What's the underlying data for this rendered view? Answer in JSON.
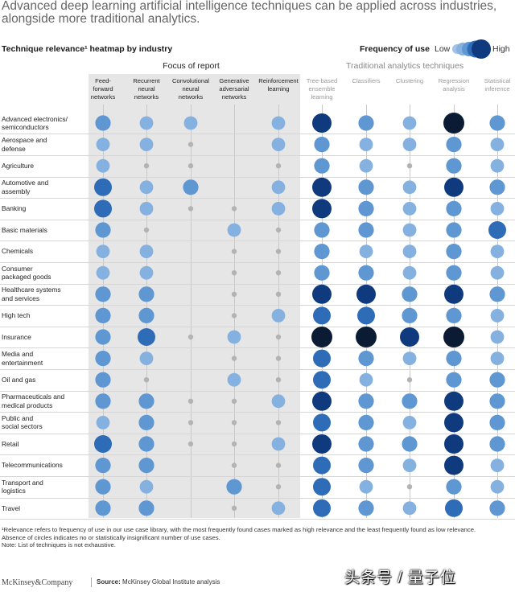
{
  "title": "Advanced deep learning artificial intelligence techniques can be applied across industries, alongside more traditional analytics.",
  "subtitle": "Technique relevance¹ heatmap by industry",
  "legend": {
    "label": "Frequency of use",
    "low": "Low",
    "high": "High"
  },
  "groups": {
    "focus": "Focus of report",
    "traditional": "Traditional analytics techniques"
  },
  "colors": {
    "panel": "#e6e6e6",
    "zero": "#b3b3b3",
    "levels": [
      "#a2c3e8",
      "#84b1e0",
      "#5f97d3",
      "#2f6cb7",
      "#0f3a7d",
      "#0b1b34"
    ]
  },
  "footnotes": [
    "¹Relevance refers to frequency of use in our use case library, with the most frequently found cases marked as high relevance and the least frequently found as low relevance. Absence of circles indicates no or statistically insignificant number of use cases.",
    "Note: List of techniques is not exhaustive."
  ],
  "brand": "McKinsey&Company",
  "source_label": "Source:",
  "source_text": "McKinsey Global Institute analysis",
  "watermark": "头条号 / 量子位",
  "chart_data": {
    "type": "heatmap",
    "title": "Technique relevance heatmap by industry",
    "value_scale": "0 = not significant (small grey dot), 1 = low frequency … 6 = high frequency",
    "columns": [
      "Feed-\nforward\nnetworks",
      "Recurrent\nneural\nnetworks",
      "Convolutional\nneural\nnetworks",
      "Generative\nadversarial\nnetworks",
      "Reinforcement\nlearning",
      "Tree-based\nensemble\nlearning",
      "Classifiers",
      "Clustering",
      "Regression\nanalysis",
      "Statistical\ninference"
    ],
    "rows": [
      "Advanced electronics/\nsemiconductors",
      "Aerospace and\ndefense",
      "Agriculture",
      "Automotive and\nassembly",
      "Banking",
      "Basic materials",
      "Chemicals",
      "Consumer\npackaged goods",
      "Healthcare systems\nand services",
      "High tech",
      "Insurance",
      "Media and\nentertainment",
      "Oil and gas",
      "Pharmaceuticals and\nmedical products",
      "Public and\nsocial sectors",
      "Retail",
      "Telecommunications",
      "Transport and\nlogistics",
      "Travel"
    ],
    "values": [
      [
        3,
        2,
        2,
        null,
        2,
        5,
        3,
        2,
        6,
        3
      ],
      [
        2,
        2,
        0,
        null,
        2,
        3,
        2,
        2,
        3,
        2
      ],
      [
        2,
        0,
        0,
        null,
        0,
        3,
        2,
        0,
        3,
        2
      ],
      [
        4,
        2,
        3,
        null,
        2,
        5,
        3,
        2,
        5,
        3
      ],
      [
        4,
        2,
        0,
        0,
        2,
        5,
        3,
        2,
        3,
        2
      ],
      [
        3,
        0,
        null,
        2,
        0,
        3,
        3,
        2,
        3,
        4
      ],
      [
        2,
        2,
        null,
        0,
        0,
        3,
        2,
        2,
        3,
        2
      ],
      [
        2,
        2,
        null,
        0,
        0,
        3,
        3,
        2,
        3,
        2
      ],
      [
        3,
        3,
        null,
        0,
        0,
        5,
        5,
        3,
        5,
        3
      ],
      [
        3,
        3,
        null,
        0,
        2,
        4,
        4,
        3,
        3,
        2
      ],
      [
        3,
        4,
        0,
        2,
        0,
        6,
        6,
        5,
        6,
        2
      ],
      [
        3,
        2,
        null,
        0,
        0,
        4,
        3,
        2,
        3,
        2
      ],
      [
        3,
        0,
        null,
        2,
        0,
        4,
        2,
        0,
        3,
        3
      ],
      [
        3,
        3,
        0,
        0,
        2,
        5,
        3,
        3,
        5,
        3
      ],
      [
        2,
        3,
        0,
        0,
        0,
        4,
        3,
        2,
        5,
        3
      ],
      [
        4,
        3,
        0,
        0,
        2,
        5,
        3,
        3,
        5,
        3
      ],
      [
        3,
        3,
        null,
        0,
        0,
        4,
        3,
        2,
        5,
        2
      ],
      [
        3,
        2,
        null,
        3,
        0,
        4,
        2,
        0,
        3,
        2
      ],
      [
        3,
        3,
        null,
        0,
        2,
        4,
        3,
        2,
        4,
        3
      ]
    ]
  }
}
